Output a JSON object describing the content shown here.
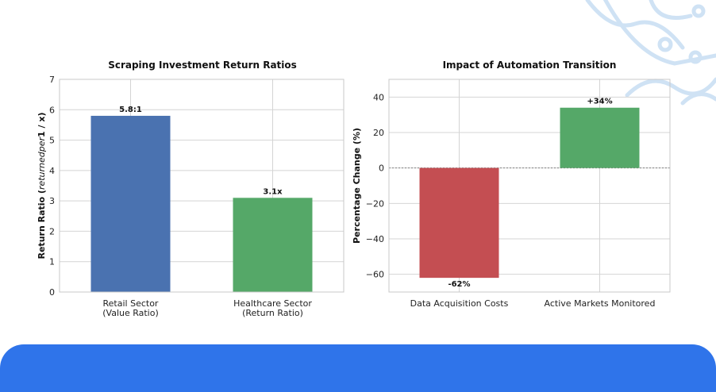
{
  "colors": {
    "blue": "#4a72b0",
    "green": "#55a868",
    "red": "#c44e52",
    "banner": "#2f74ea"
  },
  "chart_data": [
    {
      "type": "bar",
      "title": "Scraping Investment Return Ratios",
      "ylabel": "Return Ratio (returnedper1 / x)",
      "ylabel_prefix": "Return Ratio (",
      "ylabel_italic": "returnedper",
      "ylabel_suffix": "1 / x)",
      "categories": [
        "Retail Sector\n(Value Ratio)",
        "Healthcare Sector\n(Return Ratio)"
      ],
      "values": [
        5.8,
        3.1
      ],
      "data_labels": [
        "5.8:1",
        "3.1x"
      ],
      "colors": [
        "#4a72b0",
        "#55a868"
      ],
      "ylim": [
        0,
        7
      ],
      "yticks": [
        0,
        1,
        2,
        3,
        4,
        5,
        6,
        7
      ],
      "grid": true
    },
    {
      "type": "bar",
      "title": "Impact of Automation Transition",
      "ylabel": "Percentage Change (%)",
      "categories": [
        "Data Acquisition Costs",
        "Active Markets Monitored"
      ],
      "values": [
        -62,
        34
      ],
      "data_labels": [
        "-62%",
        "+34%"
      ],
      "colors": [
        "#c44e52",
        "#55a868"
      ],
      "ylim": [
        -70,
        50
      ],
      "yticks": [
        -60,
        -40,
        -20,
        0,
        20,
        40
      ],
      "ytick_labels": [
        "−60",
        "−40",
        "−20",
        "0",
        "20",
        "40"
      ],
      "grid": true,
      "zero_line": "dashed"
    }
  ]
}
